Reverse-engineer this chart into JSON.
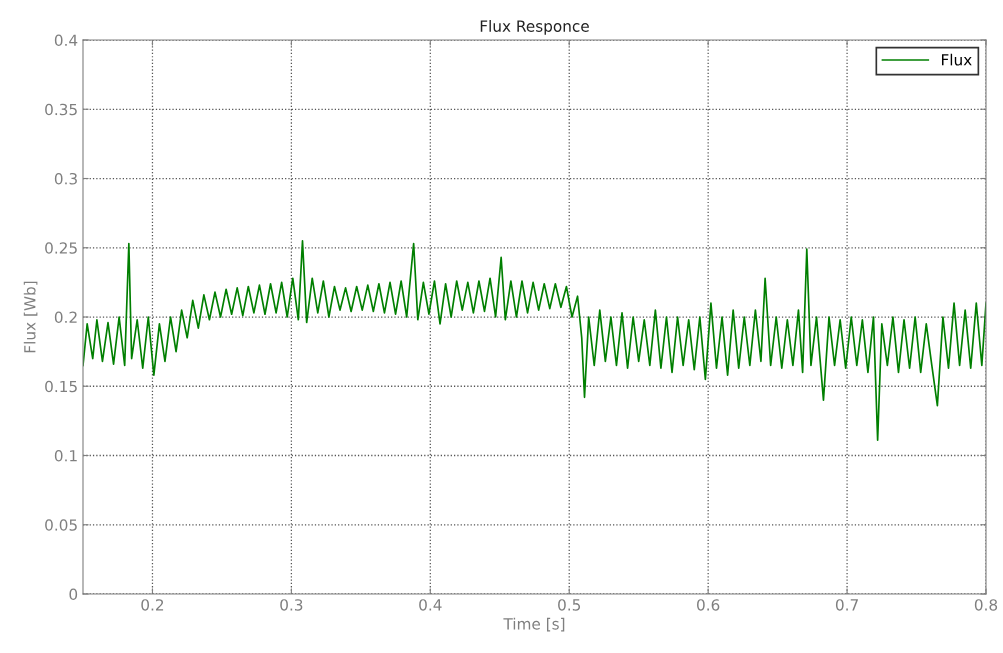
{
  "chart_data": {
    "type": "line",
    "title": "Flux Responce",
    "xlabel": "Time [s]",
    "ylabel": "Flux [Wb]",
    "xlim": [
      0.15,
      0.8
    ],
    "xticks": [
      {
        "value": 0.2,
        "label": "0.2"
      },
      {
        "value": 0.3,
        "label": "0.3"
      },
      {
        "value": 0.4,
        "label": "0.4"
      },
      {
        "value": 0.5,
        "label": "0.5"
      },
      {
        "value": 0.6,
        "label": "0.6"
      },
      {
        "value": 0.7,
        "label": "0.7"
      },
      {
        "value": 0.8,
        "label": "0.8"
      }
    ],
    "ylim": [
      0,
      0.4
    ],
    "yticks": [
      0,
      0.05,
      0.1,
      0.15,
      0.2,
      0.25,
      0.3,
      0.35,
      0.4
    ],
    "grid": true,
    "legend": "top right",
    "line_style": "solid",
    "marker": "none",
    "series": [
      {
        "name": "Flux",
        "color": "#007f00",
        "x": [
          0.15,
          0.153,
          0.157,
          0.16,
          0.164,
          0.168,
          0.172,
          0.176,
          0.18,
          0.183,
          0.185,
          0.189,
          0.193,
          0.197,
          0.201,
          0.205,
          0.209,
          0.213,
          0.217,
          0.221,
          0.225,
          0.229,
          0.233,
          0.237,
          0.241,
          0.245,
          0.249,
          0.253,
          0.257,
          0.261,
          0.265,
          0.269,
          0.273,
          0.277,
          0.281,
          0.285,
          0.289,
          0.293,
          0.297,
          0.301,
          0.305,
          0.308,
          0.311,
          0.315,
          0.319,
          0.323,
          0.327,
          0.331,
          0.335,
          0.339,
          0.343,
          0.347,
          0.351,
          0.355,
          0.359,
          0.363,
          0.367,
          0.371,
          0.375,
          0.379,
          0.383,
          0.388,
          0.391,
          0.395,
          0.399,
          0.403,
          0.407,
          0.411,
          0.415,
          0.419,
          0.423,
          0.427,
          0.431,
          0.435,
          0.439,
          0.443,
          0.447,
          0.451,
          0.454,
          0.458,
          0.462,
          0.466,
          0.47,
          0.474,
          0.478,
          0.482,
          0.486,
          0.49,
          0.494,
          0.498,
          0.502,
          0.506,
          0.509,
          0.511,
          0.514,
          0.518,
          0.522,
          0.526,
          0.53,
          0.534,
          0.538,
          0.542,
          0.546,
          0.55,
          0.554,
          0.558,
          0.562,
          0.566,
          0.57,
          0.574,
          0.578,
          0.582,
          0.586,
          0.59,
          0.594,
          0.598,
          0.602,
          0.606,
          0.61,
          0.614,
          0.618,
          0.622,
          0.626,
          0.63,
          0.634,
          0.638,
          0.641,
          0.645,
          0.649,
          0.653,
          0.657,
          0.661,
          0.665,
          0.668,
          0.671,
          0.674,
          0.678,
          0.683,
          0.687,
          0.691,
          0.695,
          0.699,
          0.703,
          0.707,
          0.711,
          0.715,
          0.719,
          0.722,
          0.725,
          0.729,
          0.733,
          0.737,
          0.741,
          0.745,
          0.749,
          0.753,
          0.757,
          0.761,
          0.765,
          0.769,
          0.773,
          0.777,
          0.781,
          0.785,
          0.789,
          0.793,
          0.797,
          0.8
        ],
        "values": [
          0.165,
          0.195,
          0.17,
          0.198,
          0.168,
          0.196,
          0.166,
          0.2,
          0.165,
          0.253,
          0.17,
          0.198,
          0.163,
          0.2,
          0.158,
          0.195,
          0.168,
          0.2,
          0.175,
          0.205,
          0.185,
          0.212,
          0.192,
          0.216,
          0.198,
          0.218,
          0.2,
          0.22,
          0.202,
          0.221,
          0.201,
          0.222,
          0.203,
          0.223,
          0.202,
          0.224,
          0.203,
          0.225,
          0.2,
          0.228,
          0.198,
          0.255,
          0.196,
          0.228,
          0.203,
          0.226,
          0.2,
          0.222,
          0.205,
          0.221,
          0.204,
          0.222,
          0.205,
          0.223,
          0.204,
          0.224,
          0.203,
          0.225,
          0.202,
          0.226,
          0.2,
          0.253,
          0.198,
          0.225,
          0.202,
          0.226,
          0.195,
          0.224,
          0.2,
          0.226,
          0.205,
          0.225,
          0.203,
          0.226,
          0.204,
          0.228,
          0.2,
          0.243,
          0.198,
          0.226,
          0.2,
          0.226,
          0.203,
          0.225,
          0.205,
          0.224,
          0.206,
          0.224,
          0.207,
          0.222,
          0.2,
          0.215,
          0.185,
          0.142,
          0.2,
          0.165,
          0.205,
          0.168,
          0.2,
          0.165,
          0.203,
          0.163,
          0.2,
          0.168,
          0.198,
          0.165,
          0.205,
          0.163,
          0.2,
          0.16,
          0.2,
          0.165,
          0.198,
          0.162,
          0.2,
          0.155,
          0.21,
          0.163,
          0.2,
          0.158,
          0.205,
          0.163,
          0.2,
          0.165,
          0.205,
          0.168,
          0.228,
          0.165,
          0.2,
          0.163,
          0.198,
          0.165,
          0.205,
          0.16,
          0.249,
          0.165,
          0.2,
          0.14,
          0.2,
          0.165,
          0.198,
          0.163,
          0.2,
          0.165,
          0.198,
          0.16,
          0.2,
          0.111,
          0.195,
          0.165,
          0.2,
          0.16,
          0.198,
          0.163,
          0.2,
          0.16,
          0.195,
          0.165,
          0.136,
          0.2,
          0.163,
          0.21,
          0.165,
          0.205,
          0.163,
          0.21,
          0.165,
          0.21
        ]
      }
    ]
  }
}
